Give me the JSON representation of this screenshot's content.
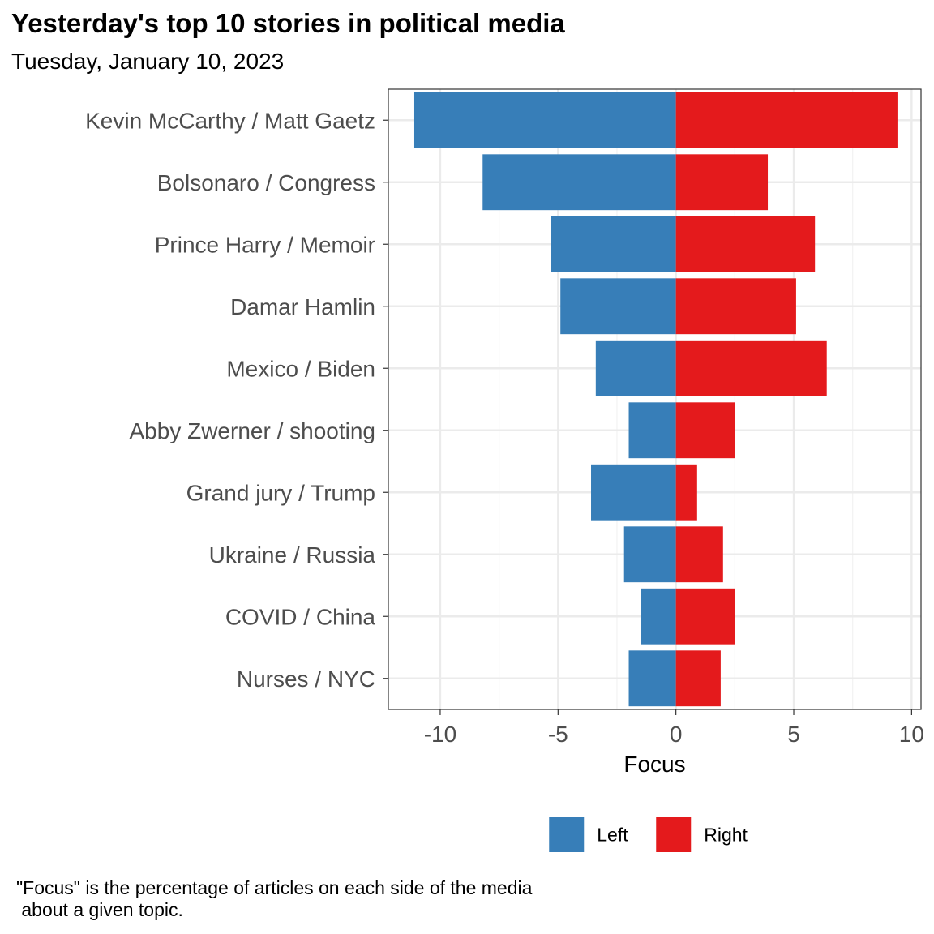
{
  "chart_data": {
    "type": "bar",
    "orientation": "horizontal",
    "stacked": "diverging",
    "title": "Yesterday's top 10 stories in political media",
    "subtitle": "Tuesday, January 10, 2023",
    "xlabel": "Focus",
    "ylabel": "",
    "xlim": [
      -12.2,
      10.4
    ],
    "xticks": [
      -10,
      -5,
      0,
      5,
      10
    ],
    "xtick_labels": [
      "-10",
      "-5",
      "0",
      "5",
      "10"
    ],
    "grid": true,
    "legend_position": "bottom",
    "categories": [
      "Kevin McCarthy / Matt Gaetz",
      "Bolsonaro / Congress",
      "Prince Harry / Memoir",
      "Damar Hamlin",
      "Mexico / Biden",
      "Abby Zwerner / shooting",
      "Grand jury / Trump",
      "Ukraine / Russia",
      "COVID / China",
      "Nurses / NYC"
    ],
    "series": [
      {
        "name": "Left",
        "color": "#377EB8",
        "values": [
          -11.1,
          -8.2,
          -5.3,
          -4.9,
          -3.4,
          -2.0,
          -3.6,
          -2.2,
          -1.5,
          -2.0
        ]
      },
      {
        "name": "Right",
        "color": "#E41A1C",
        "values": [
          9.4,
          3.9,
          5.9,
          5.1,
          6.4,
          2.5,
          0.9,
          2.0,
          2.5,
          1.9
        ]
      }
    ]
  },
  "caption": {
    "line1": "\"Focus\" is the percentage of articles on each side of the media",
    "line2": " about a given topic."
  }
}
